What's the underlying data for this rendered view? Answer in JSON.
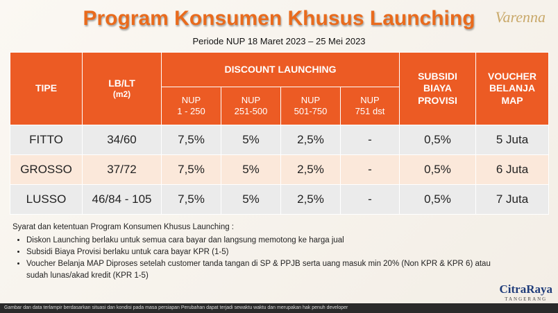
{
  "header": {
    "title": "Program Konsumen Khusus Launching",
    "subtitle": "Periode NUP 18 Maret 2023 – 25 Mei 2023",
    "brand": "Varenna"
  },
  "table": {
    "headers": {
      "tipe": "TIPE",
      "lblt": [
        "LB/LT",
        "(m2)"
      ],
      "discount": "DISCOUNT LAUNCHING",
      "nup": [
        [
          "NUP",
          "1 - 250"
        ],
        [
          "NUP",
          "251-500"
        ],
        [
          "NUP",
          "501-750"
        ],
        [
          "NUP",
          "751 dst"
        ]
      ],
      "subsidi": [
        "SUBSIDI",
        "BIAYA",
        "PROVISI"
      ],
      "voucher": [
        "VOUCHER",
        "BELANJA",
        "MAP"
      ]
    },
    "rows": [
      [
        "FITTO",
        "34/60",
        "7,5%",
        "5%",
        "2,5%",
        "-",
        "0,5%",
        "5 Juta"
      ],
      [
        "GROSSO",
        "37/72",
        "7,5%",
        "5%",
        "2,5%",
        "-",
        "0,5%",
        "6 Juta"
      ],
      [
        "LUSSO",
        "46/84 - 105",
        "7,5%",
        "5%",
        "2,5%",
        "-",
        "0,5%",
        "7 Juta"
      ]
    ]
  },
  "notes": {
    "intro": "Syarat dan ketentuan Program Konsumen Khusus Launching :",
    "items": [
      "Diskon Launching berlaku untuk semua cara bayar dan langsung memotong ke harga jual",
      "Subsidi Biaya Provisi berlaku untuk cara bayar KPR (1-5)",
      "Voucher Belanja MAP Diproses setelah customer tanda tangan di SP & PPJB serta uang masuk min 20% (Non KPR & KPR 6) atau sudah lunas/akad kredit (KPR 1-5)"
    ]
  },
  "footer": {
    "disclaimer": "Gambar dan data terlampir berdasarkan situasi dan kondisi pada masa persiapan Perubahan dapat terjadi sewaktu waktu dan merupakan hak penuh developer",
    "logo": "CitraRaya",
    "logo_sub": "TANGERANG"
  }
}
